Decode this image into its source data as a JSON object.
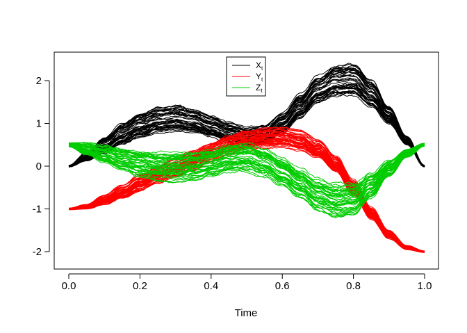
{
  "chart_data": {
    "type": "line",
    "xlabel": "Time",
    "ylabel": "",
    "xlim": [
      0,
      1
    ],
    "ylim": [
      -2.2,
      2.5
    ],
    "x_ticks": [
      0.0,
      0.2,
      0.4,
      0.6,
      0.8,
      1.0
    ],
    "x_tick_labels": [
      "0.0",
      "0.2",
      "0.4",
      "0.6",
      "0.8",
      "1.0"
    ],
    "y_ticks": [
      -2,
      -1,
      0,
      1,
      2
    ],
    "y_tick_labels": [
      "-2",
      "-1",
      "0",
      "1",
      "2"
    ],
    "grid": false,
    "legend_position": "top-center",
    "legend": [
      {
        "main": "X",
        "sub": "t",
        "color": "#000000"
      },
      {
        "main": "Y",
        "sub": "t",
        "color": "#ff0000"
      },
      {
        "main": "Z",
        "sub": "t",
        "color": "#00cc00"
      }
    ],
    "series": [
      {
        "color": "#000000",
        "x": [
          0.0,
          0.05,
          0.1,
          0.15,
          0.2,
          0.25,
          0.3,
          0.35,
          0.4,
          0.45,
          0.5,
          0.55,
          0.6,
          0.65,
          0.7,
          0.75,
          0.8,
          0.85,
          0.9,
          0.95,
          1.0
        ],
        "center": [
          0.0,
          0.22,
          0.48,
          0.75,
          0.95,
          1.08,
          1.12,
          1.05,
          0.92,
          0.78,
          0.68,
          0.72,
          1.0,
          1.4,
          1.8,
          2.0,
          2.02,
          1.7,
          1.2,
          0.6,
          0.0
        ],
        "half_width": [
          0.02,
          0.1,
          0.18,
          0.24,
          0.28,
          0.3,
          0.3,
          0.28,
          0.26,
          0.24,
          0.22,
          0.22,
          0.24,
          0.28,
          0.32,
          0.36,
          0.36,
          0.3,
          0.2,
          0.1,
          0.02
        ]
      },
      {
        "color": "#ff0000",
        "x": [
          0.0,
          0.05,
          0.1,
          0.15,
          0.2,
          0.25,
          0.3,
          0.35,
          0.4,
          0.45,
          0.5,
          0.55,
          0.6,
          0.65,
          0.7,
          0.75,
          0.8,
          0.85,
          0.9,
          0.95,
          1.0
        ],
        "center": [
          -1.0,
          -0.95,
          -0.8,
          -0.6,
          -0.4,
          -0.2,
          -0.02,
          0.15,
          0.35,
          0.52,
          0.62,
          0.68,
          0.68,
          0.6,
          0.4,
          0.05,
          -0.5,
          -1.1,
          -1.6,
          -1.9,
          -2.0
        ],
        "half_width": [
          0.02,
          0.06,
          0.12,
          0.16,
          0.2,
          0.22,
          0.24,
          0.24,
          0.24,
          0.24,
          0.24,
          0.24,
          0.24,
          0.24,
          0.22,
          0.2,
          0.18,
          0.14,
          0.1,
          0.05,
          0.02
        ]
      },
      {
        "color": "#00cc00",
        "x": [
          0.0,
          0.05,
          0.1,
          0.15,
          0.2,
          0.25,
          0.3,
          0.35,
          0.4,
          0.45,
          0.5,
          0.55,
          0.6,
          0.65,
          0.7,
          0.75,
          0.8,
          0.85,
          0.9,
          0.95,
          1.0
        ],
        "center": [
          0.5,
          0.4,
          0.28,
          0.16,
          0.06,
          0.0,
          -0.02,
          0.0,
          0.08,
          0.18,
          0.2,
          0.08,
          -0.15,
          -0.42,
          -0.68,
          -0.82,
          -0.78,
          -0.45,
          -0.05,
          0.3,
          0.5
        ],
        "half_width": [
          0.05,
          0.15,
          0.22,
          0.28,
          0.32,
          0.35,
          0.36,
          0.36,
          0.35,
          0.34,
          0.34,
          0.34,
          0.35,
          0.36,
          0.38,
          0.4,
          0.38,
          0.3,
          0.2,
          0.1,
          0.04
        ]
      }
    ]
  }
}
